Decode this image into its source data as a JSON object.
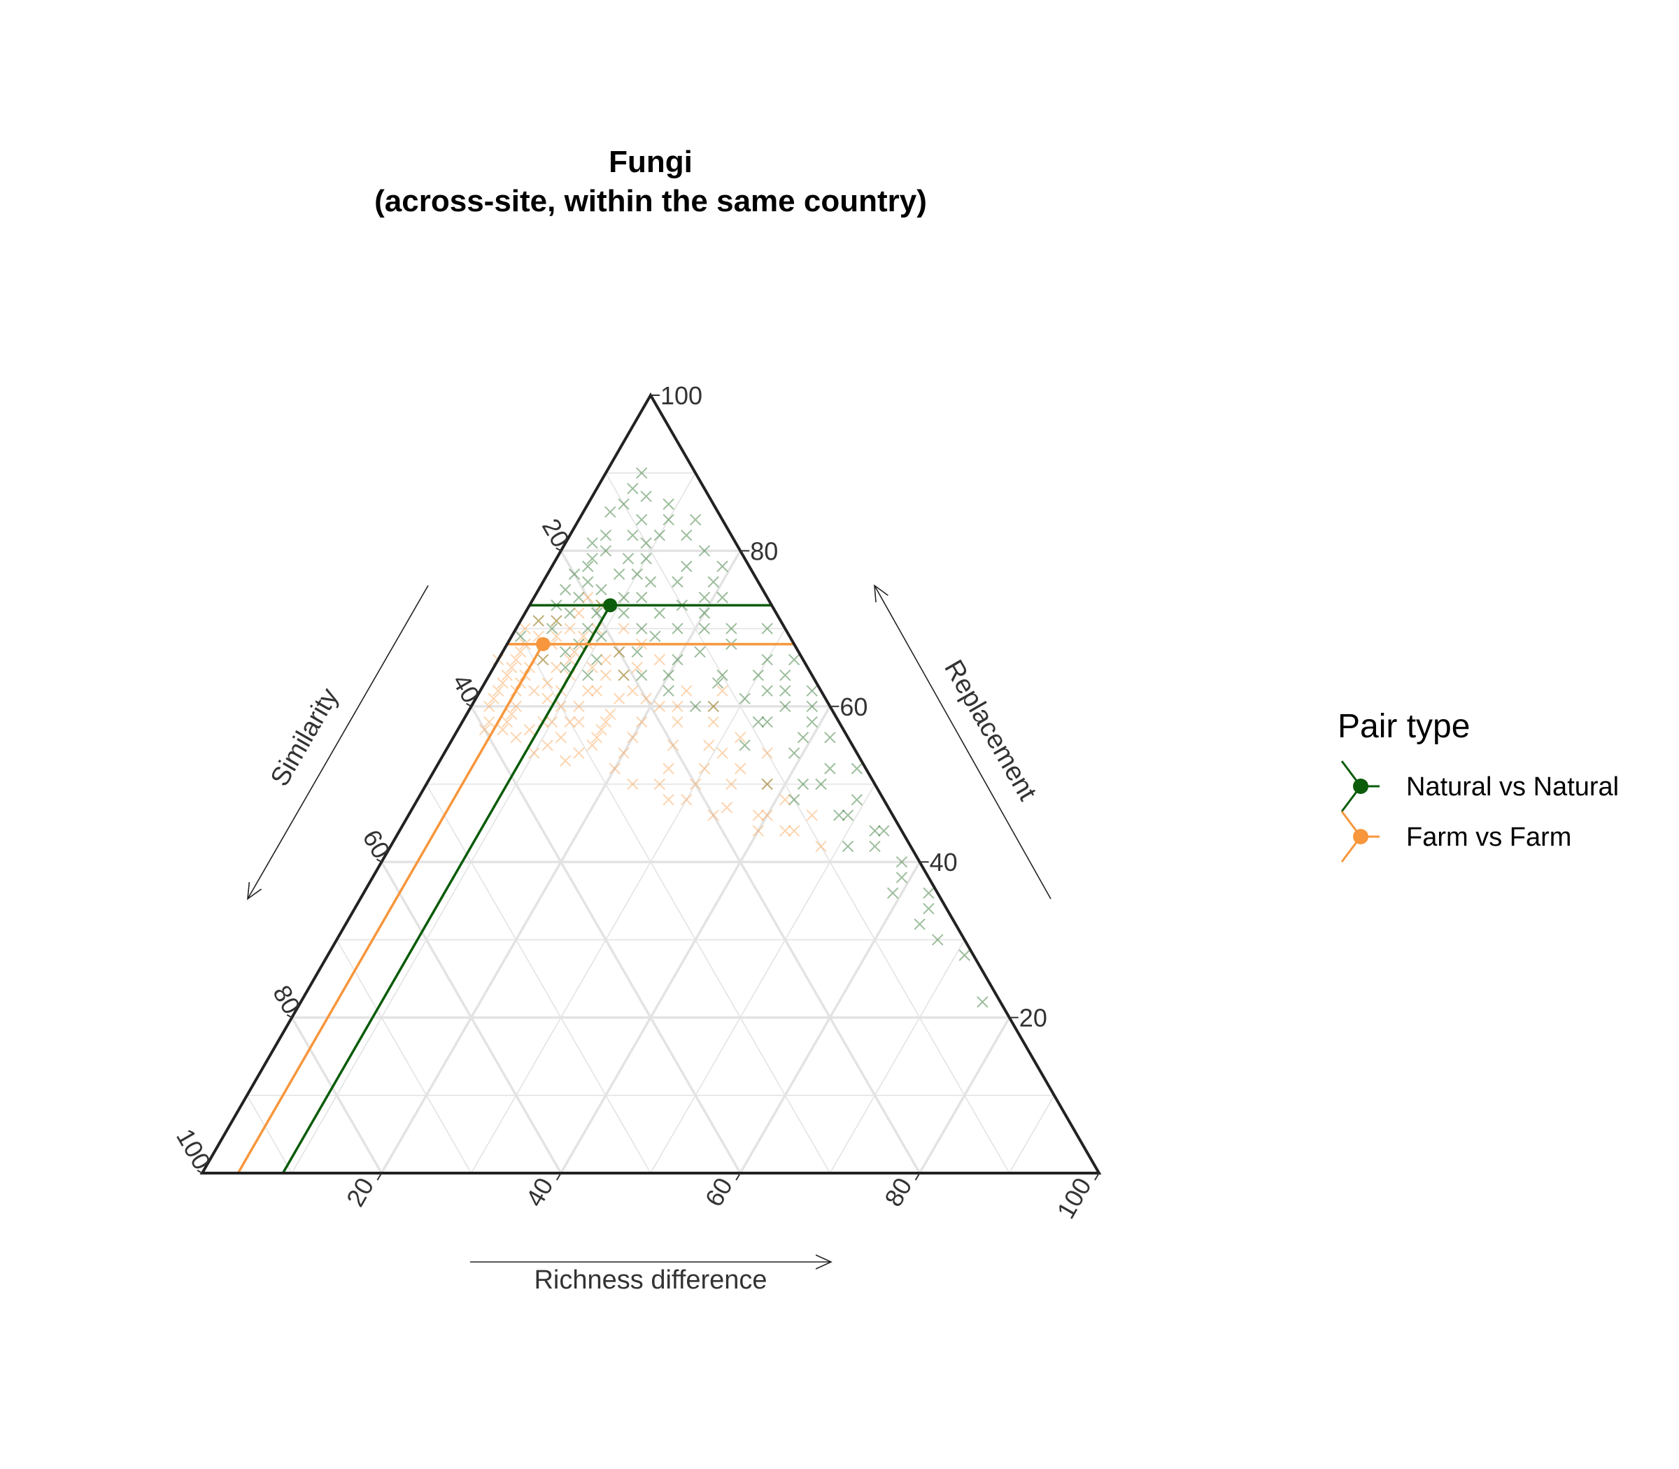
{
  "chart_data": {
    "type": "scatter",
    "subtype": "ternary",
    "title_line1": "Fungi",
    "title_line2": "(across-site, within the same country)",
    "axes": {
      "left": {
        "label": "Similarity",
        "range": [
          0,
          100
        ]
      },
      "right": {
        "label": "Replacement",
        "range": [
          0,
          100
        ]
      },
      "bottom": {
        "label": "Richness difference",
        "range": [
          0,
          100
        ]
      }
    },
    "ticks": [
      20,
      40,
      60,
      80,
      100
    ],
    "grid": true,
    "legend": {
      "title": "Pair type",
      "placement": "right",
      "entries": [
        "Natural vs Natural",
        "Farm vs Farm"
      ]
    },
    "series": [
      {
        "name": "Natural vs Natural",
        "color": "#0b5c0b",
        "centroid": {
          "similarity": 18,
          "replacement": 73,
          "richness": 9
        },
        "points": [
          [
            8,
            88,
            4
          ],
          [
            6,
            90,
            4
          ],
          [
            10,
            86,
            4
          ],
          [
            7,
            87,
            6
          ],
          [
            12,
            85,
            3
          ],
          [
            9,
            84,
            7
          ],
          [
            14,
            82,
            4
          ],
          [
            15,
            80,
            5
          ],
          [
            16,
            81,
            3
          ],
          [
            18,
            78,
            4
          ],
          [
            17,
            79,
            4
          ],
          [
            20,
            77,
            3
          ],
          [
            19,
            76,
            5
          ],
          [
            13,
            79,
            8
          ],
          [
            22,
            75,
            3
          ],
          [
            21,
            74,
            5
          ],
          [
            24,
            73,
            3
          ],
          [
            12,
            76,
            12
          ],
          [
            15,
            77,
            8
          ],
          [
            16,
            74,
            10
          ],
          [
            23,
            72,
            5
          ],
          [
            25,
            71,
            4
          ],
          [
            18,
            75,
            7
          ],
          [
            20,
            72,
            8
          ],
          [
            14,
            74,
            12
          ],
          [
            26,
            70,
            4
          ],
          [
            11,
            79,
            10
          ],
          [
            27,
            71,
            2
          ],
          [
            19,
            73,
            8
          ],
          [
            22,
            70,
            8
          ],
          [
            17,
            72,
            11
          ],
          [
            21,
            69,
            10
          ],
          [
            13,
            72,
            15
          ],
          [
            16,
            70,
            14
          ],
          [
            24,
            68,
            8
          ],
          [
            9,
            76,
            15
          ],
          [
            10,
            73,
            17
          ],
          [
            15,
            69,
            16
          ],
          [
            12,
            70,
            18
          ],
          [
            18,
            67,
            15
          ],
          [
            20,
            67,
            13
          ],
          [
            8,
            72,
            20
          ],
          [
            11,
            67,
            22
          ],
          [
            14,
            66,
            20
          ],
          [
            7,
            68,
            25
          ],
          [
            10,
            64,
            26
          ],
          [
            6,
            64,
            30
          ],
          [
            9,
            61,
            30
          ],
          [
            5,
            60,
            35
          ],
          [
            8,
            58,
            34
          ],
          [
            5,
            56,
            39
          ],
          [
            3,
            58,
            39
          ],
          [
            7,
            54,
            39
          ],
          [
            4,
            52,
            44
          ],
          [
            6,
            50,
            44
          ],
          [
            3,
            48,
            49
          ],
          [
            5,
            46,
            49
          ],
          [
            2,
            44,
            54
          ],
          [
            4,
            42,
            54
          ],
          [
            3,
            38,
            59
          ],
          [
            5,
            36,
            59
          ],
          [
            4,
            32,
            64
          ],
          [
            2,
            34,
            64
          ],
          [
            3,
            30,
            67
          ],
          [
            1,
            28,
            71
          ],
          [
            2,
            22,
            76
          ],
          [
            6,
            62,
            32
          ],
          [
            9,
            58,
            33
          ],
          [
            11,
            63,
            26
          ],
          [
            13,
            60,
            27
          ],
          [
            4,
            62,
            34
          ],
          [
            12,
            55,
            33
          ],
          [
            8,
            50,
            42
          ],
          [
            10,
            48,
            42
          ],
          [
            6,
            46,
            48
          ],
          [
            7,
            42,
            51
          ],
          [
            12,
            50,
            38
          ],
          [
            15,
            60,
            25
          ],
          [
            17,
            62,
            21
          ],
          [
            6,
            70,
            24
          ],
          [
            4,
            66,
            30
          ],
          [
            3,
            64,
            33
          ],
          [
            2,
            60,
            38
          ],
          [
            9,
            70,
            21
          ],
          [
            5,
            74,
            21
          ],
          [
            7,
            78,
            15
          ],
          [
            4,
            80,
            16
          ],
          [
            3,
            84,
            13
          ],
          [
            5,
            82,
            13
          ],
          [
            29,
            66,
            5
          ],
          [
            26,
            67,
            7
          ],
          [
            30,
            69,
            1
          ],
          [
            28,
            68,
            4
          ],
          [
            23,
            66,
            11
          ],
          [
            19,
            64,
            17
          ],
          [
            16,
            64,
            20
          ],
          [
            21,
            64,
            15
          ],
          [
            25,
            64,
            11
          ],
          [
            27,
            65,
            8
          ],
          [
            11,
            82,
            7
          ],
          [
            10,
            81,
            9
          ],
          [
            13,
            77,
            10
          ],
          [
            5,
            86,
            9
          ],
          [
            6,
            84,
            10
          ],
          [
            8,
            82,
            10
          ],
          [
            3,
            78,
            19
          ],
          [
            5,
            76,
            19
          ],
          [
            7,
            74,
            19
          ],
          [
            2,
            70,
            28
          ],
          [
            1,
            66,
            33
          ],
          [
            1,
            62,
            37
          ],
          [
            2,
            56,
            42
          ],
          [
            1,
            52,
            47
          ],
          [
            3,
            44,
            53
          ],
          [
            2,
            40,
            58
          ],
          [
            1,
            36,
            63
          ]
        ]
      },
      {
        "name": "Farm vs Farm",
        "color": "#f7963c",
        "centroid": {
          "similarity": 28,
          "replacement": 68,
          "richness": 4
        },
        "points": [
          [
            30,
            68,
            2
          ],
          [
            31,
            67,
            2
          ],
          [
            33,
            65,
            2
          ],
          [
            34,
            64,
            2
          ],
          [
            35,
            63,
            2
          ],
          [
            36,
            62,
            2
          ],
          [
            33,
            63,
            4
          ],
          [
            28,
            69,
            3
          ],
          [
            25,
            71,
            4
          ],
          [
            26,
            69,
            5
          ],
          [
            27,
            68,
            5
          ],
          [
            29,
            66,
            5
          ],
          [
            31,
            65,
            4
          ],
          [
            32,
            64,
            4
          ],
          [
            34,
            62,
            4
          ],
          [
            28,
            65,
            7
          ],
          [
            24,
            70,
            6
          ],
          [
            26,
            66,
            8
          ],
          [
            30,
            63,
            7
          ],
          [
            32,
            62,
            6
          ],
          [
            25,
            67,
            8
          ],
          [
            27,
            64,
            9
          ],
          [
            29,
            62,
            9
          ],
          [
            31,
            61,
            8
          ],
          [
            35,
            60,
            5
          ],
          [
            38,
            60,
            2
          ],
          [
            36,
            59,
            5
          ],
          [
            37,
            61,
            2
          ],
          [
            23,
            68,
            9
          ],
          [
            24,
            65,
            11
          ],
          [
            22,
            66,
            12
          ],
          [
            26,
            62,
            12
          ],
          [
            28,
            60,
            12
          ],
          [
            30,
            58,
            12
          ],
          [
            33,
            58,
            9
          ],
          [
            35,
            57,
            8
          ],
          [
            37,
            56,
            7
          ],
          [
            21,
            64,
            15
          ],
          [
            23,
            61,
            16
          ],
          [
            25,
            59,
            16
          ],
          [
            27,
            57,
            16
          ],
          [
            29,
            55,
            16
          ],
          [
            31,
            54,
            15
          ],
          [
            33,
            53,
            14
          ],
          [
            20,
            61,
            19
          ],
          [
            22,
            58,
            20
          ],
          [
            24,
            56,
            20
          ],
          [
            26,
            54,
            20
          ],
          [
            28,
            52,
            20
          ],
          [
            18,
            58,
            24
          ],
          [
            20,
            55,
            25
          ],
          [
            22,
            52,
            26
          ],
          [
            24,
            50,
            26
          ],
          [
            16,
            55,
            29
          ],
          [
            18,
            52,
            30
          ],
          [
            20,
            50,
            30
          ],
          [
            22,
            48,
            30
          ],
          [
            14,
            52,
            34
          ],
          [
            16,
            50,
            34
          ],
          [
            18,
            47,
            35
          ],
          [
            12,
            50,
            38
          ],
          [
            15,
            46,
            39
          ],
          [
            13,
            44,
            43
          ],
          [
            16,
            44,
            40
          ],
          [
            20,
            46,
            34
          ],
          [
            24,
            48,
            28
          ],
          [
            27,
            50,
            23
          ],
          [
            29,
            58,
            13
          ],
          [
            32,
            56,
            12
          ],
          [
            34,
            55,
            11
          ],
          [
            36,
            54,
            10
          ],
          [
            38,
            57,
            5
          ],
          [
            39,
            58,
            3
          ],
          [
            40,
            57,
            3
          ],
          [
            37,
            58,
            5
          ],
          [
            34,
            66,
            0
          ],
          [
            32,
            66,
            2
          ],
          [
            29,
            70,
            1
          ],
          [
            27,
            71,
            2
          ],
          [
            22,
            72,
            6
          ],
          [
            20,
            74,
            6
          ],
          [
            19,
            73,
            8
          ],
          [
            21,
            70,
            9
          ],
          [
            23,
            69,
            8
          ],
          [
            18,
            70,
            12
          ],
          [
            20,
            67,
            13
          ],
          [
            17,
            68,
            15
          ],
          [
            19,
            65,
            16
          ],
          [
            16,
            66,
            18
          ],
          [
            15,
            62,
            23
          ],
          [
            17,
            60,
            23
          ],
          [
            14,
            58,
            28
          ],
          [
            12,
            56,
            32
          ],
          [
            10,
            54,
            36
          ],
          [
            11,
            48,
            41
          ],
          [
            9,
            46,
            45
          ],
          [
            12,
            44,
            44
          ],
          [
            10,
            42,
            48
          ],
          [
            14,
            46,
            40
          ],
          [
            15,
            54,
            31
          ],
          [
            13,
            60,
            27
          ],
          [
            11,
            62,
            27
          ],
          [
            30,
            60,
            10
          ],
          [
            32,
            58,
            10
          ],
          [
            28,
            56,
            16
          ],
          [
            26,
            58,
            16
          ],
          [
            25,
            62,
            13
          ],
          [
            23,
            64,
            13
          ],
          [
            21,
            62,
            17
          ],
          [
            19,
            60,
            21
          ]
        ]
      }
    ]
  }
}
